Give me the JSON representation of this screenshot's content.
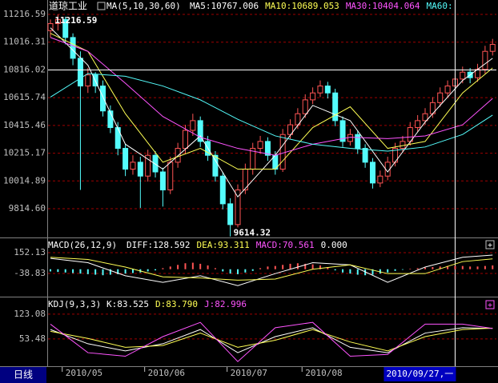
{
  "chart_data": [
    {
      "type": "candlestick",
      "title": "道琼工业",
      "indicator": "MA(5,10,30,60)",
      "ylim": [
        9607,
        11309
      ],
      "yticks": [
        11216.59,
        11016.31,
        10816.02,
        10615.74,
        10415.46,
        10215.17,
        10014.89,
        {
          "value": 9814.6,
          "label": "9814.60"
        }
      ],
      "grid": true,
      "up_color": "#ff5454",
      "down_color": "#54fcfc",
      "high_label": {
        "index": 1,
        "value": 11216.59
      },
      "low_label": {
        "index": 24,
        "value": 9614.32
      },
      "xticks": [
        {
          "value": 2,
          "label": "2010/05"
        },
        {
          "value": 13,
          "label": "2010/06"
        },
        {
          "value": 24,
          "label": "2010/07"
        },
        {
          "value": 34,
          "label": "2010/08"
        }
      ],
      "cursor": {
        "index": 54,
        "label": "2010/09/27,一",
        "value": 10816.02
      },
      "period_label": "日线",
      "candles": [
        [
          11100,
          11180,
          11050,
          11150
        ],
        [
          11150,
          11216.59,
          11100,
          11180
        ],
        [
          11180,
          11200,
          11000,
          11050
        ],
        [
          11050,
          11080,
          10850,
          10900
        ],
        [
          10900,
          10950,
          9950,
          10700
        ],
        [
          10700,
          10830,
          10650,
          10780
        ],
        [
          10780,
          10800,
          10650,
          10700
        ],
        [
          10700,
          10740,
          10480,
          10520
        ],
        [
          10520,
          10560,
          10360,
          10400
        ],
        [
          10400,
          10440,
          10200,
          10250
        ],
        [
          10250,
          10280,
          10050,
          10100
        ],
        [
          10100,
          10200,
          10060,
          10150
        ],
        [
          10150,
          10190,
          9820,
          10050
        ],
        [
          10050,
          10240,
          10010,
          10200
        ],
        [
          10200,
          10230,
          10040,
          10080
        ],
        [
          10080,
          10110,
          9830,
          9950
        ],
        [
          9950,
          10190,
          9920,
          10150
        ],
        [
          10150,
          10290,
          10110,
          10250
        ],
        [
          10250,
          10420,
          10210,
          10380
        ],
        [
          10380,
          10500,
          10340,
          10450
        ],
        [
          10450,
          10480,
          10260,
          10300
        ],
        [
          10300,
          10340,
          10160,
          10200
        ],
        [
          10200,
          10230,
          10010,
          10050
        ],
        [
          10050,
          10080,
          9810,
          9850
        ],
        [
          9850,
          9890,
          9614.32,
          9700
        ],
        [
          9700,
          9990,
          9680,
          9950
        ],
        [
          9950,
          10140,
          9920,
          10100
        ],
        [
          10100,
          10290,
          10060,
          10250
        ],
        [
          10250,
          10340,
          10210,
          10300
        ],
        [
          10300,
          10330,
          10160,
          10200
        ],
        [
          10200,
          10230,
          10060,
          10100
        ],
        [
          10100,
          10390,
          10080,
          10350
        ],
        [
          10350,
          10460,
          10320,
          10420
        ],
        [
          10420,
          10540,
          10390,
          10500
        ],
        [
          10500,
          10640,
          10470,
          10600
        ],
        [
          10600,
          10690,
          10570,
          10650
        ],
        [
          10650,
          10740,
          10620,
          10700
        ],
        [
          10700,
          10730,
          10610,
          10650
        ],
        [
          10650,
          10680,
          10410,
          10450
        ],
        [
          10450,
          10480,
          10260,
          10300
        ],
        [
          10300,
          10390,
          10270,
          10350
        ],
        [
          10350,
          10380,
          10210,
          10250
        ],
        [
          10250,
          10280,
          10110,
          10150
        ],
        [
          10150,
          10180,
          9960,
          10000
        ],
        [
          10000,
          10090,
          9970,
          10050
        ],
        [
          10050,
          10190,
          10020,
          10150
        ],
        [
          10150,
          10290,
          10120,
          10250
        ],
        [
          10250,
          10340,
          10220,
          10300
        ],
        [
          10300,
          10440,
          10270,
          10400
        ],
        [
          10400,
          10490,
          10370,
          10450
        ],
        [
          10450,
          10540,
          10420,
          10500
        ],
        [
          10500,
          10620,
          10470,
          10580
        ],
        [
          10580,
          10690,
          10550,
          10650
        ],
        [
          10650,
          10740,
          10620,
          10700
        ],
        [
          10700,
          10790,
          10670,
          10750
        ],
        [
          10750,
          10840,
          10720,
          10800
        ],
        [
          10800,
          10830,
          10720,
          10760
        ],
        [
          10760,
          10860,
          10730,
          10820
        ],
        [
          10820,
          10990,
          10790,
          10950
        ],
        [
          10950,
          11040,
          10920,
          11000
        ]
      ],
      "series": [
        {
          "name": "MA5:10767.006",
          "color": "#ffffff",
          "x": [
            0,
            5,
            10,
            15,
            20,
            25,
            30,
            35,
            40,
            45,
            50,
            55,
            59
          ],
          "values": [
            11120,
            10850,
            10280,
            10100,
            10340,
            9900,
            10200,
            10560,
            10450,
            10080,
            10440,
            10740,
            10900
          ]
        },
        {
          "name": "MA10:10689.053",
          "color": "#ffff54",
          "x": [
            0,
            5,
            10,
            15,
            20,
            25,
            30,
            35,
            40,
            45,
            50,
            55,
            59
          ],
          "values": [
            11080,
            10950,
            10500,
            10150,
            10250,
            10100,
            10100,
            10400,
            10550,
            10250,
            10300,
            10650,
            10830
          ]
        },
        {
          "name": "MA30:10404.064",
          "color": "#ff54ff",
          "x": [
            0,
            5,
            10,
            15,
            20,
            25,
            30,
            35,
            40,
            45,
            50,
            55,
            59
          ],
          "values": [
            11050,
            10950,
            10720,
            10480,
            10330,
            10250,
            10200,
            10280,
            10330,
            10320,
            10340,
            10420,
            10610
          ]
        },
        {
          "name": "MA60:",
          "color": "#54fcfc",
          "x": [
            0,
            5,
            10,
            15,
            20,
            25,
            30,
            35,
            40,
            45,
            50,
            55,
            59
          ],
          "values": [
            10620,
            10790,
            10770,
            10700,
            10600,
            10460,
            10340,
            10280,
            10250,
            10230,
            10260,
            10350,
            10490
          ]
        }
      ]
    },
    {
      "type": "macd",
      "indicator": "MACD(26,12,9)",
      "zero_label": "0.000",
      "ylim": [
        -244,
        284
      ],
      "yticks": [
        152.13,
        -38.83
      ],
      "grid": true,
      "up_color": "#ff5454",
      "down_color": "#54fcfc",
      "histogram_name": "MACD:70.561",
      "histogram": [
        -20,
        -25,
        -30,
        -35,
        -40,
        -45,
        -50,
        -55,
        -50,
        -45,
        -40,
        -35,
        -30,
        -20,
        -10,
        10,
        25,
        40,
        55,
        60,
        50,
        35,
        10,
        -20,
        -40,
        -45,
        -30,
        -15,
        10,
        25,
        30,
        40,
        50,
        55,
        50,
        45,
        35,
        20,
        -10,
        -30,
        -40,
        -50,
        -55,
        -50,
        -40,
        -30,
        -15,
        -5,
        5,
        10,
        15,
        20,
        25,
        30,
        30,
        30,
        25,
        25,
        30,
        35
      ],
      "series": [
        {
          "name": "DIFF:128.592",
          "color": "#ffffff",
          "x": [
            0,
            5,
            10,
            15,
            20,
            25,
            30,
            35,
            40,
            45,
            50,
            55,
            59
          ],
          "values": [
            100,
            60,
            -60,
            -120,
            -60,
            -150,
            -40,
            60,
            40,
            -120,
            20,
            110,
            130
          ]
        },
        {
          "name": "DEA:93.311",
          "color": "#ffff54",
          "x": [
            0,
            5,
            10,
            15,
            20,
            25,
            30,
            35,
            40,
            45,
            50,
            55,
            59
          ],
          "values": [
            110,
            90,
            20,
            -70,
            -80,
            -100,
            -90,
            0,
            40,
            -40,
            -40,
            70,
            95
          ]
        }
      ]
    },
    {
      "type": "kdj",
      "indicator": "KDJ(9,3,3)",
      "ylim": [
        -23,
        170
      ],
      "yticks": [
        123.08,
        53.48
      ],
      "grid": true,
      "series": [
        {
          "name": "K:83.525",
          "color": "#ffffff",
          "x": [
            0,
            5,
            10,
            15,
            20,
            25,
            30,
            35,
            40,
            45,
            50,
            55,
            59
          ],
          "values": [
            80,
            40,
            20,
            40,
            80,
            15,
            60,
            85,
            30,
            15,
            70,
            85,
            83
          ]
        },
        {
          "name": "D:83.790",
          "color": "#ffff54",
          "x": [
            0,
            5,
            10,
            15,
            20,
            25,
            30,
            35,
            40,
            45,
            50,
            55,
            59
          ],
          "values": [
            75,
            55,
            30,
            35,
            70,
            30,
            50,
            80,
            45,
            20,
            60,
            80,
            84
          ]
        },
        {
          "name": "J:82.996",
          "color": "#ff54ff",
          "x": [
            0,
            5,
            10,
            15,
            20,
            25,
            30,
            35,
            40,
            45,
            50,
            55,
            59
          ],
          "values": [
            95,
            15,
            5,
            60,
            100,
            -10,
            85,
            100,
            5,
            10,
            95,
            95,
            83
          ]
        }
      ]
    }
  ]
}
